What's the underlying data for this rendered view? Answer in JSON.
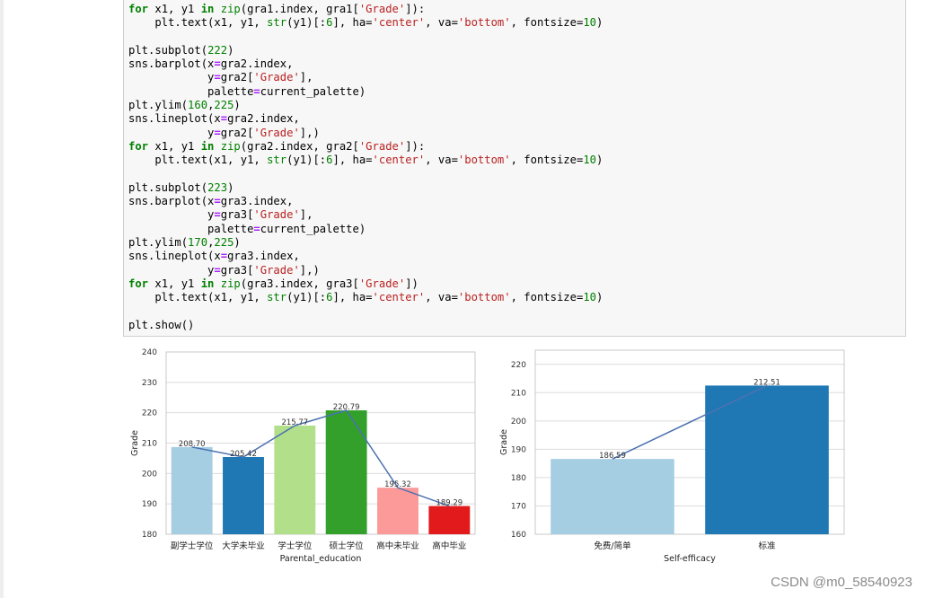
{
  "code_lines": [
    [
      {
        "t": "for",
        "c": "kw"
      },
      {
        "t": " x1, y1 "
      },
      {
        "t": "in",
        "c": "kw"
      },
      {
        "t": " "
      },
      {
        "t": "zip",
        "c": "bi"
      },
      {
        "t": "(gra1.index, gra1["
      },
      {
        "t": "'Grade'",
        "c": "st"
      },
      {
        "t": "]):"
      }
    ],
    [
      {
        "t": "    plt.text(x1, y1, "
      },
      {
        "t": "str",
        "c": "bi"
      },
      {
        "t": "(y1)[:"
      },
      {
        "t": "6",
        "c": "nu"
      },
      {
        "t": "], ha="
      },
      {
        "t": "'center'",
        "c": "st"
      },
      {
        "t": ", va="
      },
      {
        "t": "'bottom'",
        "c": "st"
      },
      {
        "t": ", fontsize="
      },
      {
        "t": "10",
        "c": "nu"
      },
      {
        "t": ")"
      }
    ],
    [],
    [
      {
        "t": "plt.subplot("
      },
      {
        "t": "222",
        "c": "nu"
      },
      {
        "t": ")"
      }
    ],
    [
      {
        "t": "sns.barplot(x"
      },
      {
        "t": "=",
        "c": "op"
      },
      {
        "t": "gra2.index,"
      }
    ],
    [
      {
        "t": "            y"
      },
      {
        "t": "=",
        "c": "op"
      },
      {
        "t": "gra2["
      },
      {
        "t": "'Grade'",
        "c": "st"
      },
      {
        "t": "],"
      }
    ],
    [
      {
        "t": "            palette"
      },
      {
        "t": "=",
        "c": "op"
      },
      {
        "t": "current_palette)"
      }
    ],
    [
      {
        "t": "plt.ylim("
      },
      {
        "t": "160",
        "c": "nu"
      },
      {
        "t": ","
      },
      {
        "t": "225",
        "c": "nu"
      },
      {
        "t": ")"
      }
    ],
    [
      {
        "t": "sns.lineplot(x"
      },
      {
        "t": "=",
        "c": "op"
      },
      {
        "t": "gra2.index,"
      }
    ],
    [
      {
        "t": "            y"
      },
      {
        "t": "=",
        "c": "op"
      },
      {
        "t": "gra2["
      },
      {
        "t": "'Grade'",
        "c": "st"
      },
      {
        "t": "],)"
      }
    ],
    [
      {
        "t": "for",
        "c": "kw"
      },
      {
        "t": " x1, y1 "
      },
      {
        "t": "in",
        "c": "kw"
      },
      {
        "t": " "
      },
      {
        "t": "zip",
        "c": "bi"
      },
      {
        "t": "(gra2.index, gra2["
      },
      {
        "t": "'Grade'",
        "c": "st"
      },
      {
        "t": "]):"
      }
    ],
    [
      {
        "t": "    plt.text(x1, y1, "
      },
      {
        "t": "str",
        "c": "bi"
      },
      {
        "t": "(y1)[:"
      },
      {
        "t": "6",
        "c": "nu"
      },
      {
        "t": "], ha="
      },
      {
        "t": "'center'",
        "c": "st"
      },
      {
        "t": ", va="
      },
      {
        "t": "'bottom'",
        "c": "st"
      },
      {
        "t": ", fontsize="
      },
      {
        "t": "10",
        "c": "nu"
      },
      {
        "t": ")"
      }
    ],
    [],
    [
      {
        "t": "plt.subplot("
      },
      {
        "t": "223",
        "c": "nu"
      },
      {
        "t": ")"
      }
    ],
    [
      {
        "t": "sns.barplot(x"
      },
      {
        "t": "=",
        "c": "op"
      },
      {
        "t": "gra3.index,"
      }
    ],
    [
      {
        "t": "            y"
      },
      {
        "t": "=",
        "c": "op"
      },
      {
        "t": "gra3["
      },
      {
        "t": "'Grade'",
        "c": "st"
      },
      {
        "t": "],"
      }
    ],
    [
      {
        "t": "            palette"
      },
      {
        "t": "=",
        "c": "op"
      },
      {
        "t": "current_palette)"
      }
    ],
    [
      {
        "t": "plt.ylim("
      },
      {
        "t": "170",
        "c": "nu"
      },
      {
        "t": ","
      },
      {
        "t": "225",
        "c": "nu"
      },
      {
        "t": ")"
      }
    ],
    [
      {
        "t": "sns.lineplot(x"
      },
      {
        "t": "=",
        "c": "op"
      },
      {
        "t": "gra3.index,"
      }
    ],
    [
      {
        "t": "            y"
      },
      {
        "t": "=",
        "c": "op"
      },
      {
        "t": "gra3["
      },
      {
        "t": "'Grade'",
        "c": "st"
      },
      {
        "t": "],)"
      }
    ],
    [
      {
        "t": "for",
        "c": "kw"
      },
      {
        "t": " x1, y1 "
      },
      {
        "t": "in",
        "c": "kw"
      },
      {
        "t": " "
      },
      {
        "t": "zip",
        "c": "bi"
      },
      {
        "t": "(gra3.index, gra3["
      },
      {
        "t": "'Grade'",
        "c": "st"
      },
      {
        "t": "])"
      }
    ],
    [
      {
        "t": "    plt.text(x1, y1, "
      },
      {
        "t": "str",
        "c": "bi"
      },
      {
        "t": "(y1)[:"
      },
      {
        "t": "6",
        "c": "nu"
      },
      {
        "t": "], ha="
      },
      {
        "t": "'center'",
        "c": "st"
      },
      {
        "t": ", va="
      },
      {
        "t": "'bottom'",
        "c": "st"
      },
      {
        "t": ", fontsize="
      },
      {
        "t": "10",
        "c": "nu"
      },
      {
        "t": ")"
      }
    ],
    [],
    [
      {
        "t": "plt.show()"
      }
    ]
  ],
  "code_colors": {
    "keyword": "#008000",
    "string": "#ba2121",
    "number": "#008000",
    "operator": "#aa22ff"
  },
  "watermark": "CSDN @m0_58540923",
  "chart_data": [
    {
      "type": "bar",
      "categories": [
        "副学士学位",
        "大学未毕业",
        "学士学位",
        "硕士学位",
        "高中未毕业",
        "高中毕业"
      ],
      "values": [
        208.7,
        205.42,
        215.77,
        220.79,
        195.32,
        189.29
      ],
      "labels": [
        "208.70",
        "205.42",
        "215.77",
        "220.79",
        "195.32",
        "189.29"
      ],
      "colors": [
        "#a6cee3",
        "#1f78b4",
        "#b2df8a",
        "#33a02c",
        "#fb9a99",
        "#e31a1c"
      ],
      "line_overlay": true,
      "line_color": "#4c72b0",
      "xlabel": "Parental_education",
      "ylabel": "Grade",
      "ylim": [
        180,
        240
      ],
      "yticks": [
        180,
        190,
        200,
        210,
        220,
        230,
        240
      ],
      "grid": true
    },
    {
      "type": "bar",
      "categories": [
        "免费/简单",
        "标准"
      ],
      "values": [
        186.59,
        212.51
      ],
      "labels": [
        "186.59",
        "212.51"
      ],
      "colors": [
        "#a6cee3",
        "#1f78b4"
      ],
      "line_overlay": true,
      "line_color": "#4c72b0",
      "xlabel": "Self-efficacy",
      "ylabel": "Grade",
      "ylim": [
        160,
        225
      ],
      "yticks": [
        160,
        170,
        180,
        190,
        200,
        210,
        220
      ],
      "grid": true
    }
  ]
}
